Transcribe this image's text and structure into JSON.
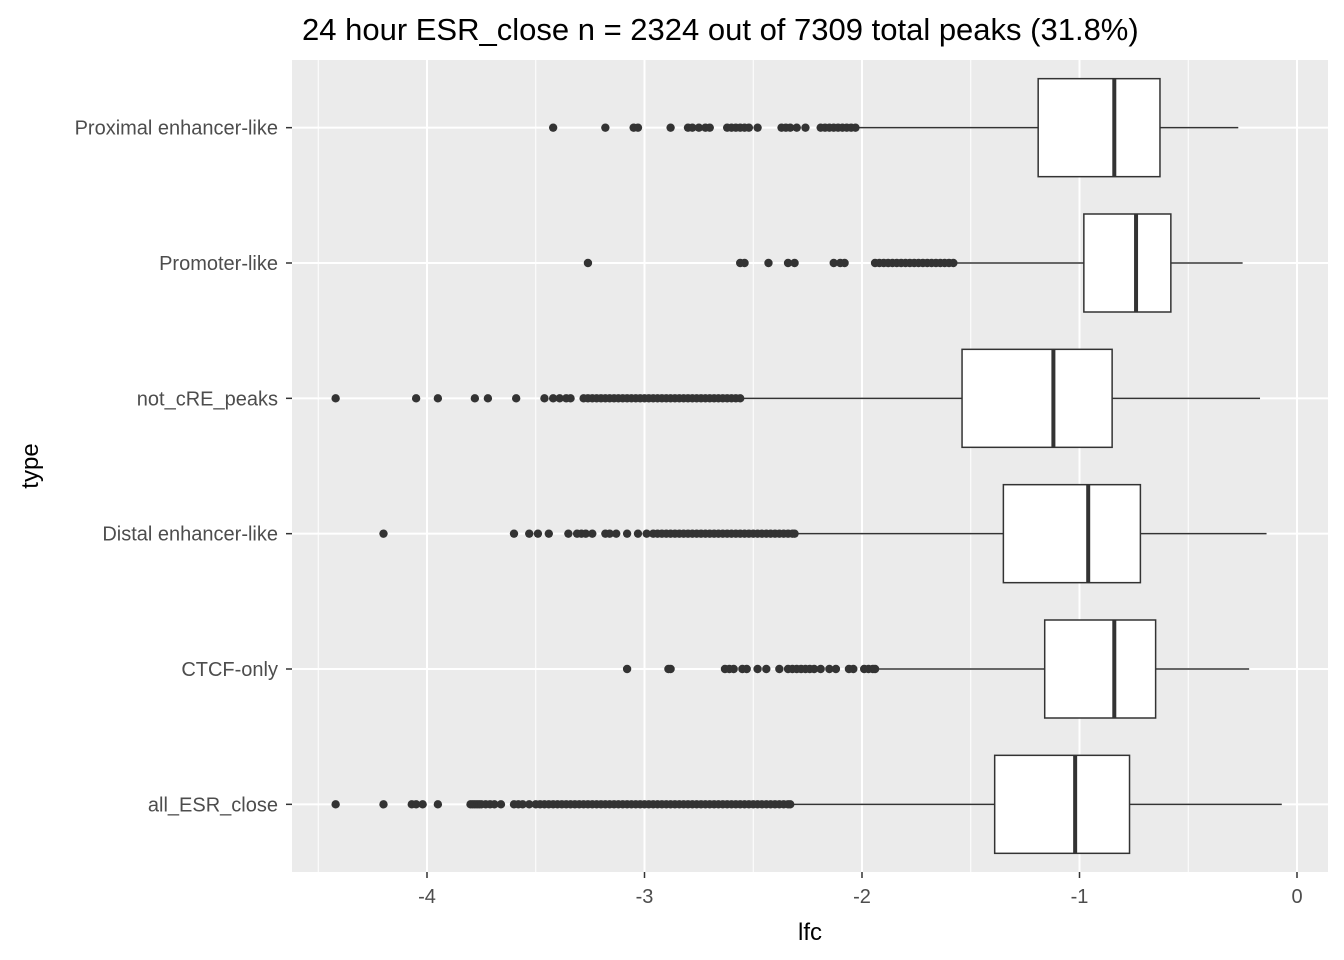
{
  "chart_data": {
    "type": "boxplot",
    "orientation": "horizontal",
    "title": "24 hour ESR_close n = 2324 out of 7309 total peaks (31.8%)",
    "xlabel": "lfc",
    "ylabel": "type",
    "xlim": [
      -4.5,
      0.1
    ],
    "x_ticks": [
      -4,
      -3,
      -2,
      -1,
      0
    ],
    "x_tick_labels": [
      "-4",
      "-3",
      "-2",
      "-1",
      "0"
    ],
    "grid": true,
    "colors": {
      "panel_background": "#ebebeb",
      "grid": "#ffffff",
      "box_fill": "#ffffff",
      "box_line": "#333333",
      "outlier": "#333333"
    },
    "categories": [
      "all_ESR_close",
      "CTCF-only",
      "Distal enhancer-like",
      "not_cRE_peaks",
      "Promoter-like",
      "Proximal enhancer-like"
    ],
    "boxes": [
      {
        "category": "all_ESR_close",
        "whisker_low": -2.32,
        "q1": -1.39,
        "median": -1.02,
        "q3": -0.77,
        "whisker_high": -0.07,
        "outliers": [
          -4.42,
          -4.2,
          -4.07,
          -4.05,
          -4.02,
          -3.95,
          -3.8,
          -3.79,
          -3.78,
          -3.77,
          -3.76,
          -3.75,
          -3.73,
          -3.71,
          -3.69,
          -3.66,
          -3.6,
          -3.58,
          -3.56,
          -3.53,
          -3.5,
          -3.48,
          -3.46,
          -3.44,
          -3.42,
          -3.4,
          -3.38,
          -3.36,
          -3.34,
          -3.32,
          -3.3,
          -3.28,
          -3.26,
          -3.24,
          -3.22,
          -3.2,
          -3.18,
          -3.16,
          -3.14,
          -3.12,
          -3.1,
          -3.08,
          -3.06,
          -3.04,
          -3.02,
          -3.0,
          -2.98,
          -2.96,
          -2.94,
          -2.92,
          -2.9,
          -2.88,
          -2.86,
          -2.84,
          -2.82,
          -2.8,
          -2.78,
          -2.76,
          -2.74,
          -2.72,
          -2.7,
          -2.68,
          -2.66,
          -2.64,
          -2.62,
          -2.6,
          -2.58,
          -2.56,
          -2.54,
          -2.52,
          -2.5,
          -2.48,
          -2.46,
          -2.44,
          -2.42,
          -2.4,
          -2.38,
          -2.36,
          -2.34,
          -2.33
        ]
      },
      {
        "category": "CTCF-only",
        "whisker_low": -1.93,
        "q1": -1.16,
        "median": -0.84,
        "q3": -0.65,
        "whisker_high": -0.22,
        "outliers": [
          -3.08,
          -2.89,
          -2.88,
          -2.63,
          -2.61,
          -2.59,
          -2.55,
          -2.53,
          -2.48,
          -2.44,
          -2.38,
          -2.34,
          -2.32,
          -2.3,
          -2.28,
          -2.26,
          -2.24,
          -2.22,
          -2.19,
          -2.15,
          -2.12,
          -2.06,
          -2.04,
          -1.99,
          -1.97,
          -1.95,
          -1.94
        ]
      },
      {
        "category": "Distal enhancer-like",
        "whisker_low": -2.3,
        "q1": -1.35,
        "median": -0.96,
        "q3": -0.72,
        "whisker_high": -0.14,
        "outliers": [
          -4.2,
          -3.6,
          -3.53,
          -3.49,
          -3.44,
          -3.35,
          -3.31,
          -3.29,
          -3.27,
          -3.24,
          -3.18,
          -3.16,
          -3.13,
          -3.08,
          -3.03,
          -2.99,
          -2.96,
          -2.94,
          -2.92,
          -2.9,
          -2.88,
          -2.86,
          -2.84,
          -2.82,
          -2.8,
          -2.78,
          -2.76,
          -2.74,
          -2.72,
          -2.7,
          -2.68,
          -2.66,
          -2.64,
          -2.62,
          -2.6,
          -2.58,
          -2.56,
          -2.54,
          -2.52,
          -2.5,
          -2.48,
          -2.46,
          -2.44,
          -2.42,
          -2.4,
          -2.38,
          -2.36,
          -2.34,
          -2.32,
          -2.31
        ]
      },
      {
        "category": "not_cRE_peaks",
        "whisker_low": -2.55,
        "q1": -1.54,
        "median": -1.12,
        "q3": -0.85,
        "whisker_high": -0.17,
        "outliers": [
          -4.42,
          -4.05,
          -3.95,
          -3.78,
          -3.72,
          -3.59,
          -3.46,
          -3.42,
          -3.39,
          -3.36,
          -3.34,
          -3.28,
          -3.26,
          -3.24,
          -3.22,
          -3.2,
          -3.18,
          -3.16,
          -3.14,
          -3.12,
          -3.1,
          -3.08,
          -3.06,
          -3.04,
          -3.02,
          -3.0,
          -2.98,
          -2.96,
          -2.94,
          -2.92,
          -2.9,
          -2.88,
          -2.86,
          -2.84,
          -2.82,
          -2.8,
          -2.78,
          -2.76,
          -2.74,
          -2.72,
          -2.7,
          -2.68,
          -2.66,
          -2.64,
          -2.62,
          -2.6,
          -2.58,
          -2.56
        ]
      },
      {
        "category": "Promoter-like",
        "whisker_low": -1.57,
        "q1": -0.98,
        "median": -0.74,
        "q3": -0.58,
        "whisker_high": -0.25,
        "outliers": [
          -3.26,
          -2.56,
          -2.54,
          -2.43,
          -2.34,
          -2.31,
          -2.13,
          -2.1,
          -2.08,
          -1.94,
          -1.92,
          -1.9,
          -1.88,
          -1.86,
          -1.84,
          -1.82,
          -1.8,
          -1.78,
          -1.76,
          -1.74,
          -1.72,
          -1.7,
          -1.68,
          -1.66,
          -1.64,
          -1.62,
          -1.6,
          -1.58
        ]
      },
      {
        "category": "Proximal enhancer-like",
        "whisker_low": -2.02,
        "q1": -1.19,
        "median": -0.84,
        "q3": -0.63,
        "whisker_high": -0.27,
        "outliers": [
          -3.42,
          -3.18,
          -3.05,
          -3.03,
          -2.88,
          -2.8,
          -2.78,
          -2.75,
          -2.72,
          -2.7,
          -2.62,
          -2.6,
          -2.58,
          -2.56,
          -2.54,
          -2.52,
          -2.48,
          -2.37,
          -2.35,
          -2.33,
          -2.3,
          -2.26,
          -2.19,
          -2.17,
          -2.15,
          -2.13,
          -2.11,
          -2.09,
          -2.07,
          -2.05,
          -2.03
        ]
      }
    ]
  }
}
